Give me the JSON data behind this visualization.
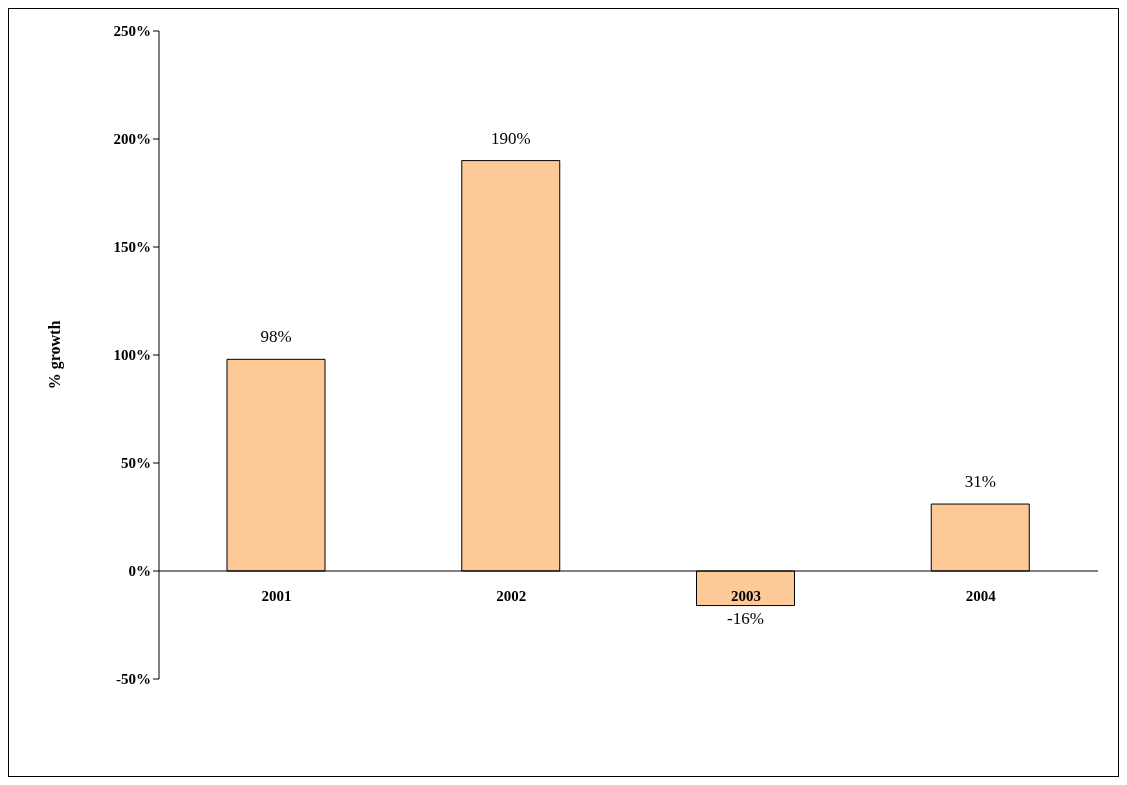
{
  "chart_data": {
    "type": "bar",
    "ylabel": "% growth",
    "categories": [
      "2001",
      "2002",
      "2003",
      "2004"
    ],
    "values": [
      98,
      190,
      -16,
      31
    ],
    "color": "#fdc997",
    "value_labels": [
      "98%",
      "190%",
      "-16%",
      "31%"
    ],
    "ylim": [
      -50,
      250
    ],
    "yticks": [
      {
        "value": -50,
        "label": "-50%"
      },
      {
        "value": 0,
        "label": "0%"
      },
      {
        "value": 50,
        "label": "50%"
      },
      {
        "value": 100,
        "label": "100%"
      },
      {
        "value": 150,
        "label": "150%"
      },
      {
        "value": 200,
        "label": "200%"
      },
      {
        "value": 250,
        "label": "250%"
      }
    ],
    "grid": false,
    "legend": false
  }
}
